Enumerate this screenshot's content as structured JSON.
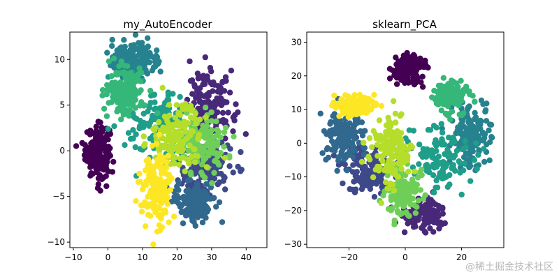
{
  "watermark": "@稀土掘金技术社区",
  "chart_data": [
    {
      "type": "scatter",
      "title": "my_AutoEncoder",
      "xlabel": "",
      "ylabel": "",
      "xlim": [
        -11,
        46
      ],
      "ylim": [
        -10.6,
        13
      ],
      "xticks": [
        -10,
        0,
        10,
        20,
        30,
        40
      ],
      "yticks": [
        -10,
        -5,
        0,
        5,
        10
      ],
      "grid": false,
      "legend": "none",
      "colormap": "viridis",
      "clusters": [
        {
          "class": 0,
          "color": "#440154",
          "center": [
            -3,
            0
          ],
          "spread": [
            3.2,
            2.6
          ],
          "count": 180
        },
        {
          "class": 1,
          "color": "#482878",
          "center": [
            30,
            5
          ],
          "spread": [
            6,
            3.2
          ],
          "count": 150
        },
        {
          "class": 2,
          "color": "#3e4989",
          "center": [
            28,
            -2
          ],
          "spread": [
            7,
            3
          ],
          "count": 150
        },
        {
          "class": 3,
          "color": "#31688e",
          "center": [
            25,
            -5.5
          ],
          "spread": [
            5,
            2
          ],
          "count": 150
        },
        {
          "class": 4,
          "color": "#26828e",
          "center": [
            8,
            10
          ],
          "spread": [
            7,
            1.8
          ],
          "count": 150
        },
        {
          "class": 5,
          "color": "#1f9e89",
          "center": [
            14,
            3
          ],
          "spread": [
            8,
            3.5
          ],
          "count": 120
        },
        {
          "class": 6,
          "color": "#35b779",
          "center": [
            5,
            6.5
          ],
          "spread": [
            5,
            2.5
          ],
          "count": 150
        },
        {
          "class": 7,
          "color": "#6ece58",
          "center": [
            27,
            1
          ],
          "spread": [
            7,
            3
          ],
          "count": 140
        },
        {
          "class": 8,
          "color": "#b5de2b",
          "center": [
            20,
            1.5
          ],
          "spread": [
            7,
            3
          ],
          "count": 150
        },
        {
          "class": 9,
          "color": "#fde725",
          "center": [
            14,
            -4
          ],
          "spread": [
            4,
            3.5
          ],
          "count": 150
        }
      ]
    },
    {
      "type": "scatter",
      "title": "sklearn_PCA",
      "xlabel": "",
      "ylabel": "",
      "xlim": [
        -35,
        35
      ],
      "ylim": [
        -31,
        33
      ],
      "xticks": [
        -20,
        0,
        20
      ],
      "yticks": [
        -30,
        -20,
        -10,
        0,
        10,
        20,
        30
      ],
      "grid": false,
      "legend": "none",
      "colormap": "viridis",
      "clusters": [
        {
          "class": 0,
          "color": "#440154",
          "center": [
            1,
            22
          ],
          "spread": [
            5,
            4
          ],
          "count": 160
        },
        {
          "class": 1,
          "color": "#482878",
          "center": [
            6,
            -21
          ],
          "spread": [
            7,
            4
          ],
          "count": 140
        },
        {
          "class": 2,
          "color": "#3e4989",
          "center": [
            -13,
            -8
          ],
          "spread": [
            8,
            6
          ],
          "count": 150
        },
        {
          "class": 3,
          "color": "#31688e",
          "center": [
            -22,
            2
          ],
          "spread": [
            6,
            7
          ],
          "count": 150
        },
        {
          "class": 4,
          "color": "#26828e",
          "center": [
            23,
            2
          ],
          "spread": [
            6,
            9
          ],
          "count": 150
        },
        {
          "class": 5,
          "color": "#1f9e89",
          "center": [
            12,
            -5
          ],
          "spread": [
            10,
            8
          ],
          "count": 120
        },
        {
          "class": 6,
          "color": "#35b779",
          "center": [
            16,
            14
          ],
          "spread": [
            5,
            4
          ],
          "count": 150
        },
        {
          "class": 7,
          "color": "#6ece58",
          "center": [
            0,
            -14
          ],
          "spread": [
            6,
            7
          ],
          "count": 130
        },
        {
          "class": 8,
          "color": "#b5de2b",
          "center": [
            -5,
            -2
          ],
          "spread": [
            6,
            9
          ],
          "count": 150
        },
        {
          "class": 9,
          "color": "#fde725",
          "center": [
            -18,
            11
          ],
          "spread": [
            6,
            3
          ],
          "count": 150
        }
      ]
    }
  ]
}
